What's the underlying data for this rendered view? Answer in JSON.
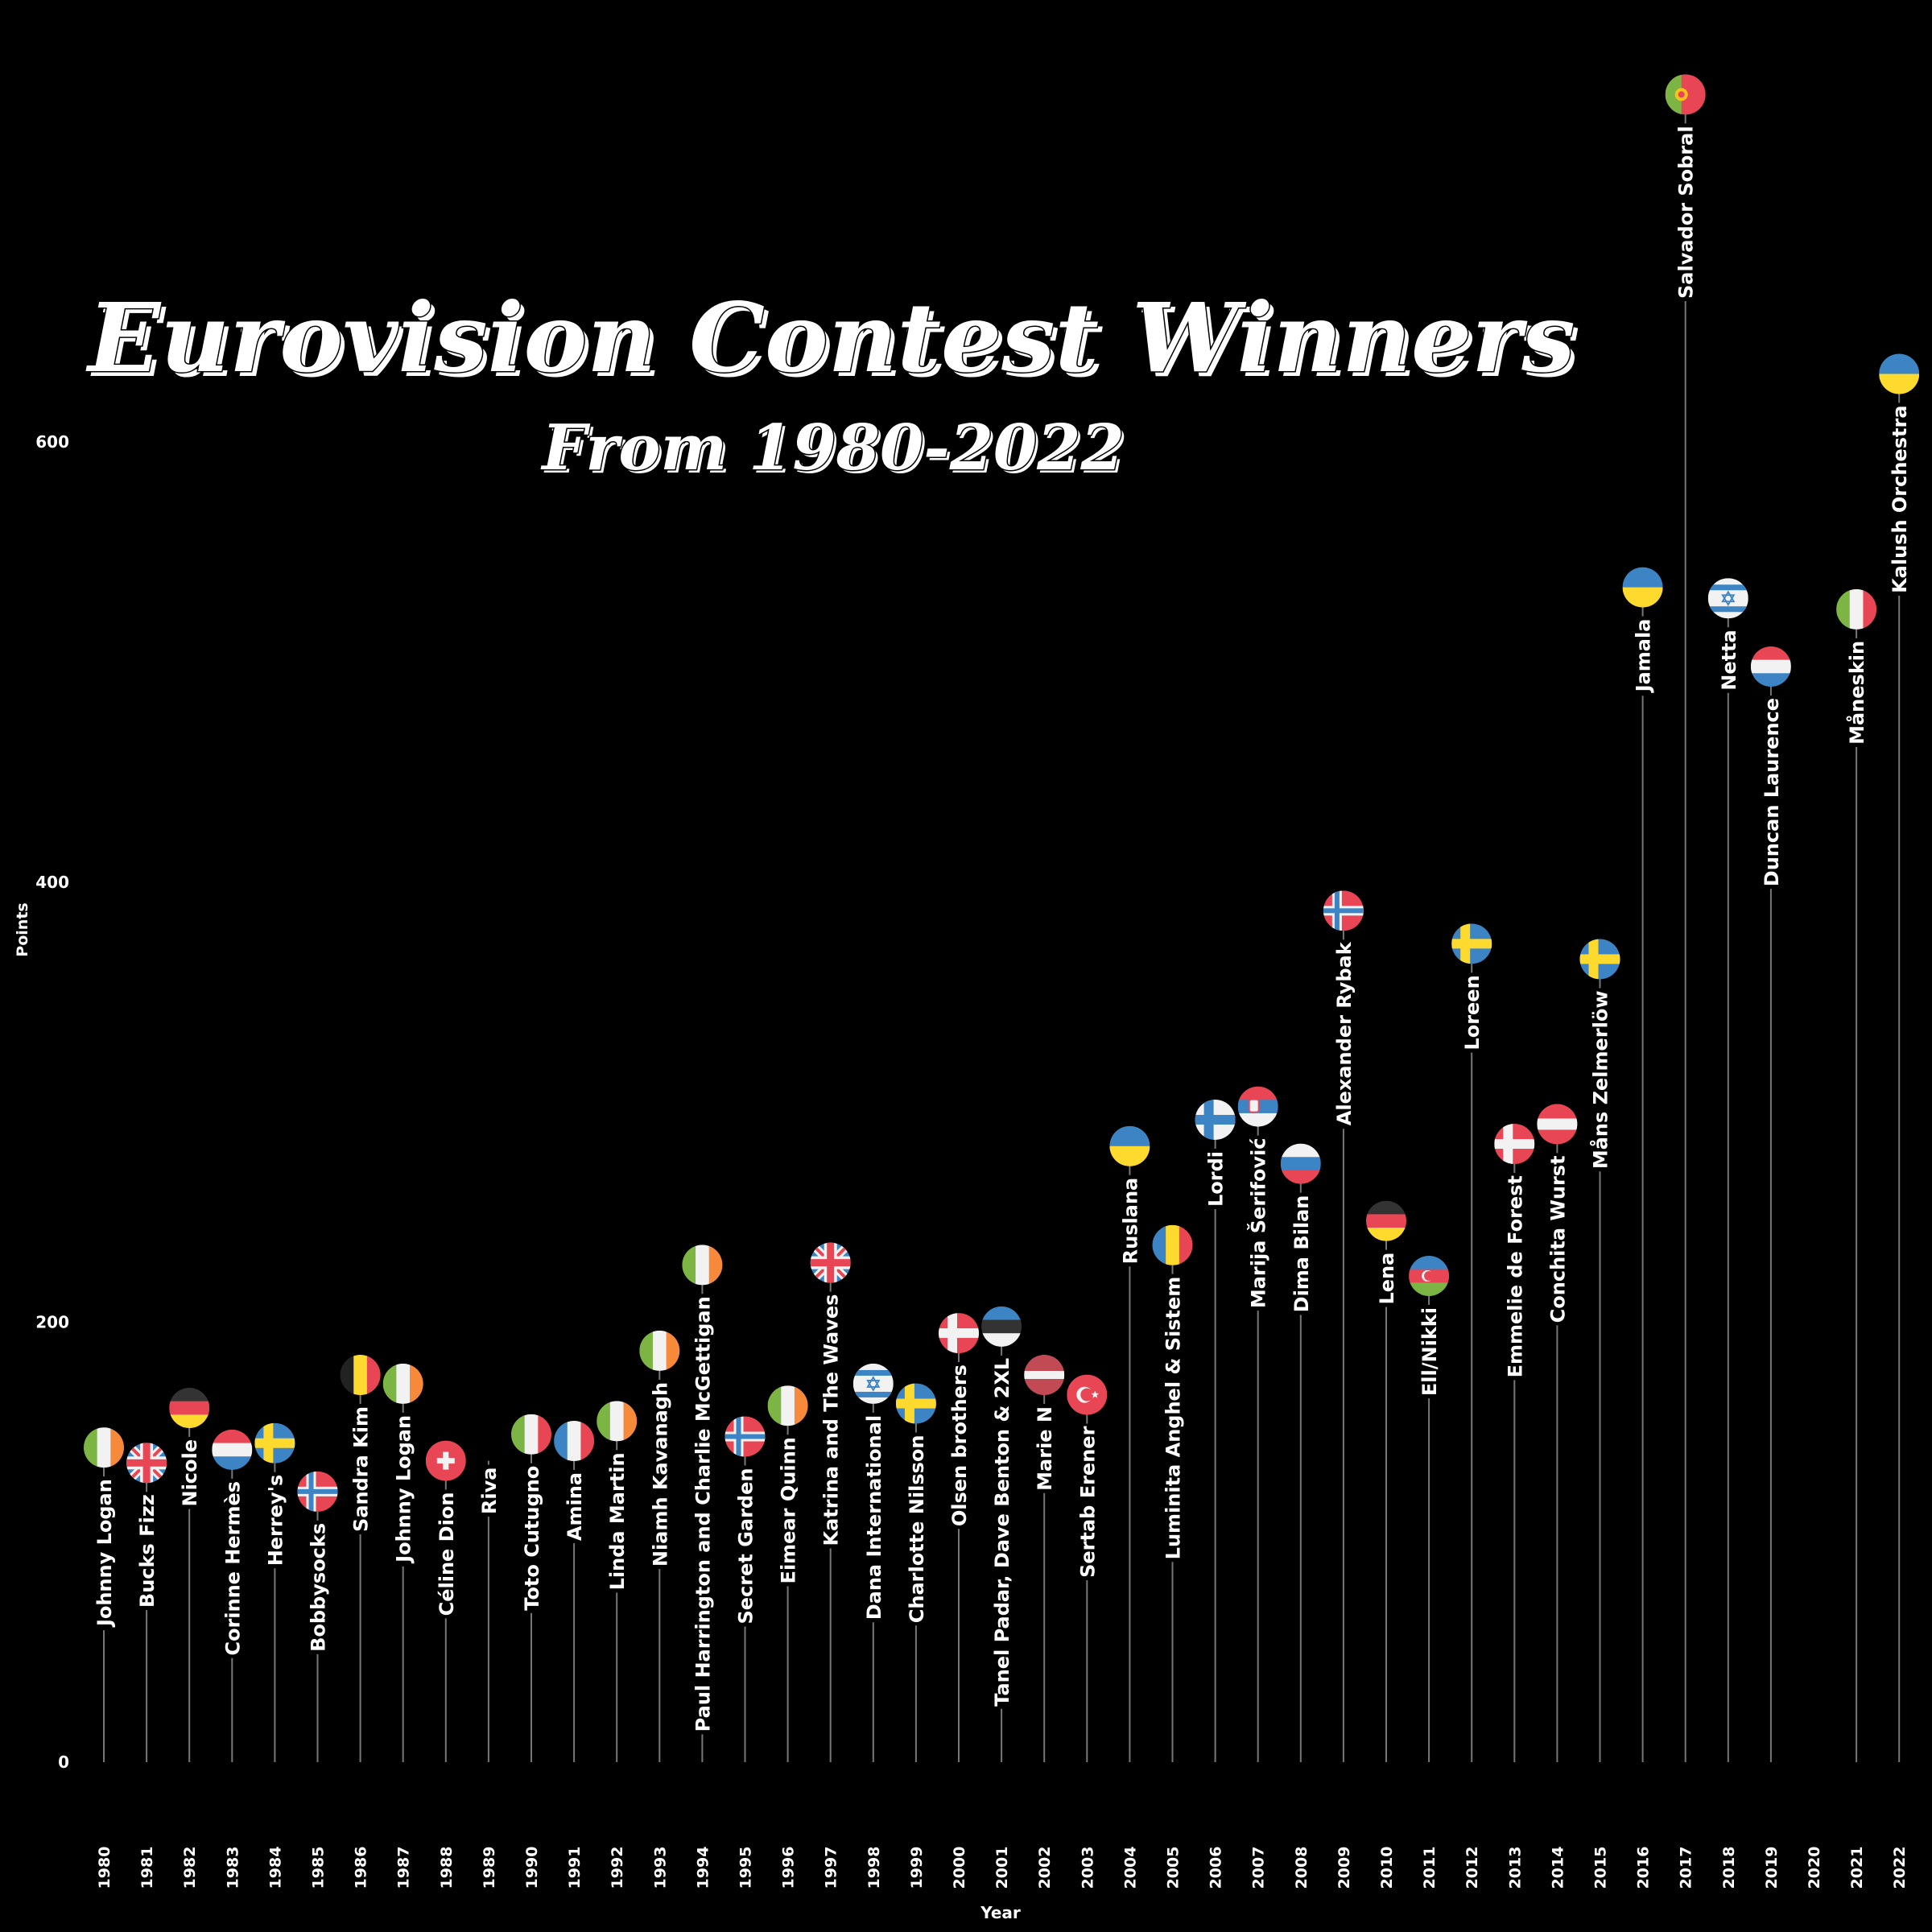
{
  "title": "Eurovision Contest Winners",
  "subtitle": "From 1980-2022",
  "chart_data": {
    "type": "lollipop",
    "title": "Eurovision Contest Winners",
    "subtitle": "From 1980-2022",
    "xlabel": "Year",
    "ylabel": "Points",
    "ylim": [
      0,
      760
    ],
    "yticks": [
      0,
      200,
      400,
      600
    ],
    "grid": false,
    "points": [
      {
        "year": 1980,
        "artist": "Johnny Logan",
        "points": 143,
        "flag": "ireland"
      },
      {
        "year": 1981,
        "artist": "Bucks Fizz",
        "points": 136,
        "flag": "uk"
      },
      {
        "year": 1982,
        "artist": "Nicole",
        "points": 161,
        "flag": "germany"
      },
      {
        "year": 1983,
        "artist": "Corinne Hermès",
        "points": 142,
        "flag": "luxembourg"
      },
      {
        "year": 1984,
        "artist": "Herrey's",
        "points": 145,
        "flag": "sweden"
      },
      {
        "year": 1985,
        "artist": "Bobbysocks",
        "points": 123,
        "flag": "norway"
      },
      {
        "year": 1986,
        "artist": "Sandra Kim",
        "points": 176,
        "flag": "belgium"
      },
      {
        "year": 1987,
        "artist": "Johnny Logan",
        "points": 172,
        "flag": "ireland"
      },
      {
        "year": 1988,
        "artist": "Céline Dion",
        "points": 137,
        "flag": "switzerland"
      },
      {
        "year": 1989,
        "artist": "Riva",
        "points": 137,
        "flag": ""
      },
      {
        "year": 1990,
        "artist": "Toto Cutugno",
        "points": 149,
        "flag": "italy"
      },
      {
        "year": 1991,
        "artist": "Amina",
        "points": 146,
        "flag": "france"
      },
      {
        "year": 1992,
        "artist": "Linda Martin",
        "points": 155,
        "flag": "ireland"
      },
      {
        "year": 1993,
        "artist": "Niamh Kavanagh",
        "points": 187,
        "flag": "ireland"
      },
      {
        "year": 1994,
        "artist": "Paul Harrington and Charlie McGettigan",
        "points": 226,
        "flag": "ireland"
      },
      {
        "year": 1995,
        "artist": "Secret Garden",
        "points": 148,
        "flag": "norway"
      },
      {
        "year": 1996,
        "artist": "Eimear Quinn",
        "points": 162,
        "flag": "ireland"
      },
      {
        "year": 1997,
        "artist": "Katrina and The Waves",
        "points": 227,
        "flag": "uk"
      },
      {
        "year": 1998,
        "artist": "Dana International",
        "points": 172,
        "flag": "israel"
      },
      {
        "year": 1999,
        "artist": "Charlotte Nilsson",
        "points": 163,
        "flag": "sweden"
      },
      {
        "year": 2000,
        "artist": "Olsen brothers",
        "points": 195,
        "flag": "denmark"
      },
      {
        "year": 2001,
        "artist": "Tanel Padar, Dave Benton & 2XL",
        "points": 198,
        "flag": "estonia"
      },
      {
        "year": 2002,
        "artist": "Marie N",
        "points": 176,
        "flag": "latvia"
      },
      {
        "year": 2003,
        "artist": "Sertab Erener",
        "points": 167,
        "flag": "turkey"
      },
      {
        "year": 2004,
        "artist": "Ruslana",
        "points": 280,
        "flag": "ukraine"
      },
      {
        "year": 2005,
        "artist": "Luminita Anghel & Sistem",
        "points": 235,
        "flag": "romania"
      },
      {
        "year": 2006,
        "artist": "Lordi",
        "points": 292,
        "flag": "finland"
      },
      {
        "year": 2007,
        "artist": "Marija Šerifović",
        "points": 298,
        "flag": "serbia"
      },
      {
        "year": 2008,
        "artist": "Dima Bilan",
        "points": 272,
        "flag": "russia"
      },
      {
        "year": 2009,
        "artist": "Alexander Rybak",
        "points": 387,
        "flag": "norway"
      },
      {
        "year": 2010,
        "artist": "Lena",
        "points": 246,
        "flag": "germany"
      },
      {
        "year": 2011,
        "artist": "Ell/Nikki",
        "points": 221,
        "flag": "azerbaijan"
      },
      {
        "year": 2012,
        "artist": "Loreen",
        "points": 372,
        "flag": "sweden"
      },
      {
        "year": 2013,
        "artist": "Emmelie de Forest",
        "points": 281,
        "flag": "denmark"
      },
      {
        "year": 2014,
        "artist": "Conchita Wurst",
        "points": 290,
        "flag": "austria"
      },
      {
        "year": 2015,
        "artist": "Måns Zelmerlöw",
        "points": 365,
        "flag": "sweden"
      },
      {
        "year": 2016,
        "artist": "Jamala",
        "points": 534,
        "flag": "ukraine"
      },
      {
        "year": 2017,
        "artist": "Salvador Sobral",
        "points": 758,
        "flag": "portugal"
      },
      {
        "year": 2018,
        "artist": "Netta",
        "points": 529,
        "flag": "israel"
      },
      {
        "year": 2019,
        "artist": "Duncan Laurence",
        "points": 498,
        "flag": "netherlands"
      },
      {
        "year": 2021,
        "artist": "Måneskin",
        "points": 524,
        "flag": "italy"
      },
      {
        "year": 2022,
        "artist": "Kalush Orchestra",
        "points": 631,
        "flag": "ukraine"
      }
    ],
    "x_ticks": [
      1980,
      1981,
      1982,
      1983,
      1984,
      1985,
      1986,
      1987,
      1988,
      1989,
      1990,
      1991,
      1992,
      1993,
      1994,
      1995,
      1996,
      1997,
      1998,
      1999,
      2000,
      2001,
      2002,
      2003,
      2004,
      2005,
      2006,
      2007,
      2008,
      2009,
      2010,
      2011,
      2012,
      2013,
      2014,
      2015,
      2016,
      2017,
      2018,
      2019,
      2020,
      2021,
      2022
    ]
  }
}
